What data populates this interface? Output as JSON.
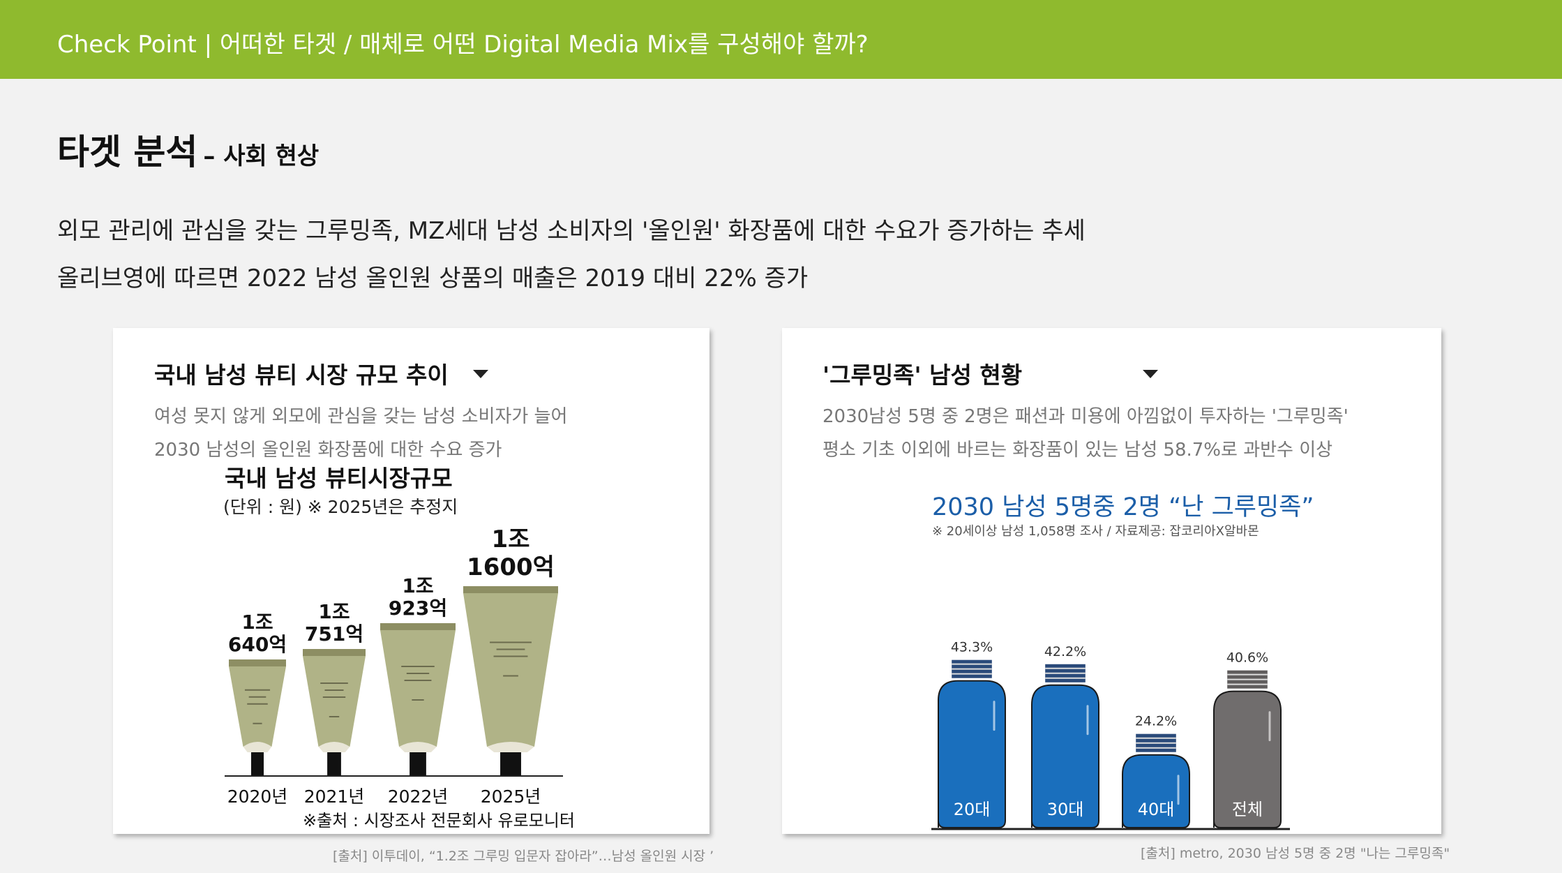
{
  "header": {
    "title": "Check Point  |  어떠한 타겟 / 매체로 어떤 Digital Media Mix를 구성해야 할까?"
  },
  "section": {
    "title": "타겟 분석",
    "subtitle": "– 사회 현상"
  },
  "description": [
    "외모 관리에 관심을 갖는 그루밍족, MZ세대 남성 소비자의 '올인원' 화장품에 대한 수요가 증가하는 추세",
    "올리브영에 따르면 2022 남성 올인원 상품의 매출은 2019 대비 22% 증가"
  ],
  "colors": {
    "header": "#8fba2e",
    "tube": "#b0b387",
    "bottle_blue": "#1a6fbd",
    "bottle_gray": "#706d6d",
    "title_blue": "#1b5ea8"
  },
  "card_left": {
    "title": "국내 남성 뷰티 시장 규모 추이",
    "lines": [
      "여성 못지 않게 외모에 관심을 갖는 남성 소비자가 늘어",
      "2030  남성의 올인원 화장품에 대한 수요 증가"
    ],
    "source": "[출처] 이투데이, “1.2조 그루밍 입문자 잡아라”…남성 올인원 시장 ’"
  },
  "card_right": {
    "title": "'그루밍족' 남성 현황",
    "lines": [
      "2030남성 5명 중 2명은 패션과 미용에 아낌없이 투자하는 '그루밍족'",
      "평소 기초 이외에 바르는 화장품이 있는 남성 58.7%로 과반수 이상"
    ],
    "source": "[출처] metro, 2030 남성 5명 중 2명 \"나는 그루밍족\""
  },
  "chart_data": [
    {
      "type": "bar",
      "title": "국내 남성 뷰티시장규모",
      "subtitle": "(단위 : 원)  ※ 2025년은 추정지",
      "categories": [
        "2020년",
        "2021년",
        "2022년",
        "2025년"
      ],
      "value_labels": [
        [
          "1조",
          "640억"
        ],
        [
          "1조",
          "751억"
        ],
        [
          "1조",
          "923억"
        ],
        [
          "1조",
          "1600억"
        ]
      ],
      "values": [
        10640,
        10751,
        10923,
        11600
      ],
      "unit": "억 원",
      "note": "※출처 : 시장조사 전문회사 유로모니터"
    },
    {
      "type": "bar",
      "title": "2030 남성 5명중 2명 “난 그루밍족”",
      "subtitle": "※ 20세이상 남성 1,058명 조사   / 자료제공: 잡코리아X알바몬",
      "categories": [
        "20대",
        "30대",
        "40대",
        "전체"
      ],
      "values": [
        43.3,
        42.2,
        24.2,
        40.6
      ],
      "value_labels": [
        "43.3%",
        "42.2%",
        "24.2%",
        "40.6%"
      ],
      "unit": "%"
    }
  ]
}
